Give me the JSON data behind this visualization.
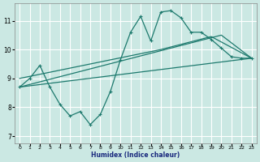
{
  "xlabel": "Humidex (Indice chaleur)",
  "background_color": "#cbe8e3",
  "grid_color": "#ffffff",
  "line_color": "#1e7a6e",
  "xlim": [
    -0.5,
    23.5
  ],
  "ylim": [
    6.75,
    11.6
  ],
  "xticks": [
    0,
    1,
    2,
    3,
    4,
    5,
    6,
    7,
    8,
    9,
    10,
    11,
    12,
    13,
    14,
    15,
    16,
    17,
    18,
    19,
    20,
    21,
    22,
    23
  ],
  "yticks": [
    7,
    8,
    9,
    10,
    11
  ],
  "line1_x": [
    0,
    1,
    2,
    3,
    4,
    5,
    6,
    7,
    8,
    9,
    10,
    11,
    12,
    13,
    14,
    15,
    16,
    17,
    18,
    19,
    20,
    21,
    22,
    23
  ],
  "line1_y": [
    8.7,
    9.0,
    9.45,
    8.7,
    8.1,
    7.7,
    7.85,
    7.4,
    7.75,
    8.55,
    9.65,
    10.6,
    11.15,
    10.3,
    11.3,
    11.35,
    11.1,
    10.6,
    10.6,
    10.35,
    10.05,
    9.75,
    9.7,
    9.7
  ],
  "line2_x": [
    0,
    23
  ],
  "line2_y": [
    8.7,
    9.7
  ],
  "line3_x": [
    0,
    20,
    23
  ],
  "line3_y": [
    8.7,
    10.5,
    9.7
  ],
  "line4_x": [
    0,
    14,
    19,
    23
  ],
  "line4_y": [
    9.0,
    10.0,
    10.45,
    9.7
  ]
}
